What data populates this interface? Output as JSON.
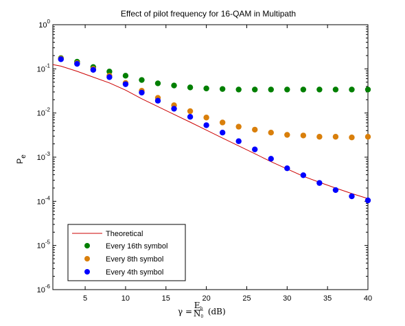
{
  "chart_data": {
    "type": "scatter",
    "title": "Effect of pilot frequency for 16-QAM in Multipath",
    "xlabel": {
      "prefix": "γ = ",
      "frac_num": "E",
      "frac_num_sub": "b",
      "frac_den": "N",
      "frac_den_sub": "0",
      "suffix": " (dB)"
    },
    "ylabel": {
      "main": "P",
      "sub": "e"
    },
    "xlim": [
      1,
      40
    ],
    "ylim": [
      1e-06,
      1
    ],
    "yscale": "log",
    "grid": false,
    "legend_position": "lower-left",
    "x_ticks": [
      {
        "value": 5,
        "label": "5"
      },
      {
        "value": 10,
        "label": "10"
      },
      {
        "value": 15,
        "label": "15"
      },
      {
        "value": 20,
        "label": "20"
      },
      {
        "value": 25,
        "label": "25"
      },
      {
        "value": 30,
        "label": "30"
      },
      {
        "value": 35,
        "label": "35"
      },
      {
        "value": 40,
        "label": "40"
      }
    ],
    "y_ticks": [
      {
        "value": 1,
        "base": "10",
        "exp": "0"
      },
      {
        "value": 0.1,
        "base": "10",
        "exp": "-1"
      },
      {
        "value": 0.01,
        "base": "10",
        "exp": "-2"
      },
      {
        "value": 0.001,
        "base": "10",
        "exp": "-3"
      },
      {
        "value": 0.0001,
        "base": "10",
        "exp": "-4"
      },
      {
        "value": 1e-05,
        "base": "10",
        "exp": "-5"
      },
      {
        "value": 1e-06,
        "base": "10",
        "exp": "-6"
      }
    ],
    "series": [
      {
        "name": "Theoretical",
        "kind": "line",
        "color": "#cc0000",
        "x": [
          1,
          2,
          4,
          6,
          8,
          10,
          12,
          14,
          16,
          18,
          20,
          22,
          24,
          26,
          28,
          30,
          32,
          34,
          36,
          38,
          40
        ],
        "y": [
          0.125,
          0.115,
          0.088,
          0.065,
          0.048,
          0.033,
          0.021,
          0.014,
          0.0093,
          0.0062,
          0.0041,
          0.0027,
          0.0018,
          0.0012,
          0.00079,
          0.00054,
          0.00037,
          0.00027,
          0.0002,
          0.00015,
          0.000115
        ]
      },
      {
        "name": "Every 16th symbol",
        "kind": "markers",
        "color": "#007f00",
        "x": [
          2,
          4,
          6,
          8,
          10,
          12,
          14,
          16,
          18,
          20,
          22,
          24,
          26,
          28,
          30,
          32,
          34,
          36,
          38,
          40
        ],
        "y": [
          0.175,
          0.145,
          0.11,
          0.087,
          0.07,
          0.056,
          0.047,
          0.042,
          0.038,
          0.036,
          0.035,
          0.034,
          0.034,
          0.034,
          0.034,
          0.034,
          0.034,
          0.034,
          0.034,
          0.034
        ]
      },
      {
        "name": "Every 8th symbol",
        "kind": "markers",
        "color": "#d97f0b",
        "x": [
          2,
          4,
          6,
          8,
          10,
          12,
          14,
          16,
          18,
          20,
          22,
          24,
          26,
          28,
          30,
          32,
          34,
          36,
          38,
          40
        ],
        "y": [
          0.17,
          0.135,
          0.1,
          0.07,
          0.048,
          0.032,
          0.022,
          0.015,
          0.011,
          0.0079,
          0.0061,
          0.0049,
          0.0042,
          0.0036,
          0.0032,
          0.0031,
          0.0029,
          0.0029,
          0.0028,
          0.0029
        ]
      },
      {
        "name": "Every 4th symbol",
        "kind": "markers",
        "color": "#0000ff",
        "x": [
          2,
          4,
          6,
          8,
          10,
          12,
          14,
          16,
          18,
          20,
          22,
          24,
          26,
          28,
          30,
          32,
          34,
          36,
          38,
          40
        ],
        "y": [
          0.165,
          0.13,
          0.095,
          0.065,
          0.045,
          0.029,
          0.019,
          0.0125,
          0.0082,
          0.0053,
          0.0036,
          0.0023,
          0.0015,
          0.00092,
          0.00056,
          0.00039,
          0.00026,
          0.00018,
          0.00013,
          0.000105
        ]
      }
    ]
  }
}
